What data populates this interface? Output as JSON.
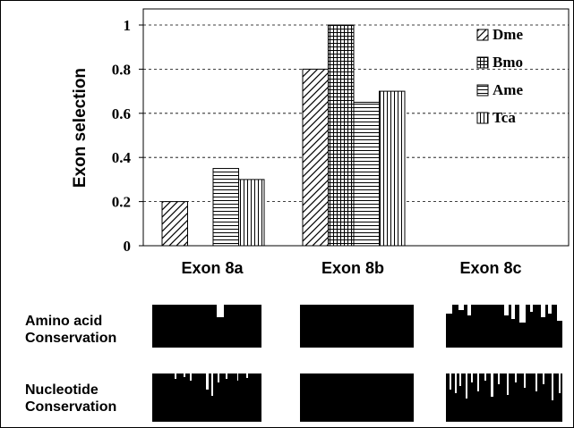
{
  "chart_data": {
    "type": "bar",
    "ylabel": "Exon selection",
    "xlabel": "",
    "ylim": [
      0,
      1
    ],
    "yticks": [
      "0",
      "0.2",
      "0.4",
      "0.6",
      "0.8",
      "1"
    ],
    "grid": "horizontal dashed",
    "legend_position": "top-right",
    "categories": [
      "Exon 8a",
      "Exon 8b",
      "Exon 8c"
    ],
    "series": [
      {
        "name": "Dme",
        "pattern": "diagonal-hatch",
        "values": [
          0.2,
          0.8,
          0
        ]
      },
      {
        "name": "Bmo",
        "pattern": "crosshatch-grid",
        "values": [
          0,
          1.0,
          0
        ]
      },
      {
        "name": "Ame",
        "pattern": "horizontal-lines",
        "values": [
          0.35,
          0.65,
          0
        ]
      },
      {
        "name": "Tca",
        "pattern": "vertical-lines",
        "values": [
          0.3,
          0.7,
          0
        ]
      }
    ]
  },
  "conservation": {
    "rows": [
      {
        "label_line1": "Amino acid",
        "label_line2": "Conservation",
        "panels": [
          "Exon 8a",
          "Exon 8b",
          "Exon 8c"
        ]
      },
      {
        "label_line1": "Nucleotide",
        "label_line2": "Conservation",
        "panels": [
          "Exon 8a",
          "Exon 8b",
          "Exon 8c"
        ]
      }
    ]
  },
  "colors": {
    "ink": "#000000",
    "paper": "#ffffff",
    "grid": "#000000"
  }
}
